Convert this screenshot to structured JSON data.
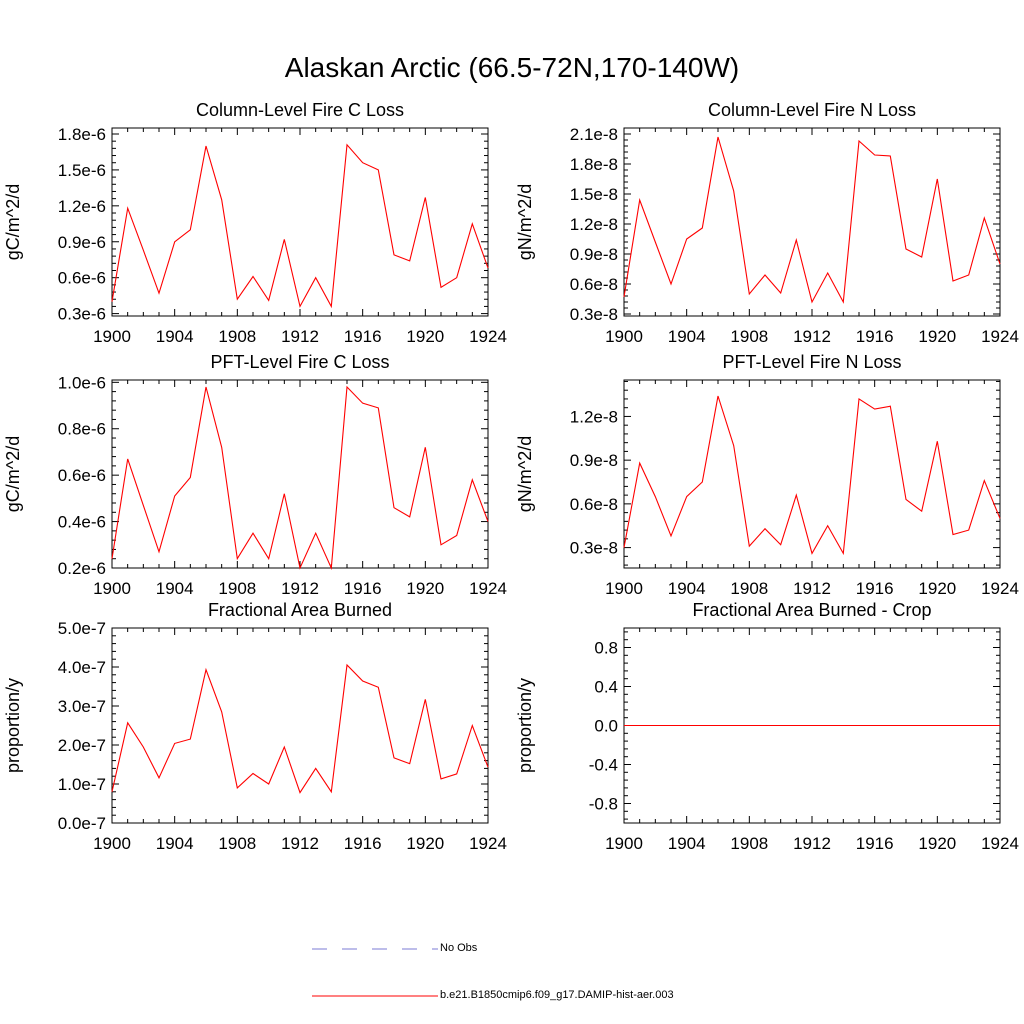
{
  "title": "Alaskan Arctic (66.5-72N,170-140W)",
  "colors": {
    "model": "#ff0000",
    "obs": "#7b7bd6"
  },
  "legend": [
    {
      "label": "No Obs",
      "style": "dashed",
      "color": "#7b7bd6"
    },
    {
      "label": "b.e21.B1850cmip6.f09_g17.DAMIP-hist-aer.003",
      "style": "solid",
      "color": "#ff0000"
    }
  ],
  "chart_data": [
    {
      "type": "line",
      "title": "Column-Level Fire C Loss",
      "ylabel": "gC/m^2/d",
      "xlim": [
        1900,
        1924
      ],
      "ylim": [
        2.8e-07,
        1.85e-06
      ],
      "xticks": [
        1900,
        1904,
        1908,
        1912,
        1916,
        1920,
        1924
      ],
      "yticks": [
        3e-07,
        6e-07,
        9e-07,
        1.2e-06,
        1.5e-06,
        1.8e-06
      ],
      "yticklabels": [
        "0.3e-6",
        "0.6e-6",
        "0.9e-6",
        "1.2e-6",
        "1.5e-6",
        "1.8e-6"
      ],
      "x": [
        1900,
        1901,
        1902,
        1903,
        1904,
        1905,
        1906,
        1907,
        1908,
        1909,
        1910,
        1911,
        1912,
        1913,
        1914,
        1915,
        1916,
        1917,
        1918,
        1919,
        1920,
        1921,
        1922,
        1923,
        1924
      ],
      "series": [
        {
          "name": "b.e21.B1850cmip6.f09_g17.DAMIP-hist-aer.003",
          "values": [
            4e-07,
            1.18e-06,
            8.3e-07,
            4.7e-07,
            9e-07,
            1e-06,
            1.7e-06,
            1.25e-06,
            4.2e-07,
            6.1e-07,
            4.1e-07,
            9.2e-07,
            3.6e-07,
            6e-07,
            3.6e-07,
            1.71e-06,
            1.56e-06,
            1.5e-06,
            7.9e-07,
            7.4e-07,
            1.27e-06,
            5.2e-07,
            6e-07,
            1.05e-06,
            6.8e-07
          ]
        }
      ]
    },
    {
      "type": "line",
      "title": "Column-Level Fire N Loss",
      "ylabel": "gN/m^2/d",
      "xlim": [
        1900,
        1924
      ],
      "ylim": [
        2.8e-09,
        2.16e-08
      ],
      "xticks": [
        1900,
        1904,
        1908,
        1912,
        1916,
        1920,
        1924
      ],
      "yticks": [
        3e-09,
        6e-09,
        9e-09,
        1.2e-08,
        1.5e-08,
        1.8e-08,
        2.1e-08
      ],
      "yticklabels": [
        "0.3e-8",
        "0.6e-8",
        "0.9e-8",
        "1.2e-8",
        "1.5e-8",
        "1.8e-8",
        "2.1e-8"
      ],
      "x": [
        1900,
        1901,
        1902,
        1903,
        1904,
        1905,
        1906,
        1907,
        1908,
        1909,
        1910,
        1911,
        1912,
        1913,
        1914,
        1915,
        1916,
        1917,
        1918,
        1919,
        1920,
        1921,
        1922,
        1923,
        1924
      ],
      "series": [
        {
          "name": "b.e21.B1850cmip6.f09_g17.DAMIP-hist-aer.003",
          "values": [
            4.7e-09,
            1.44e-08,
            1.02e-08,
            6e-09,
            1.05e-08,
            1.16e-08,
            2.07e-08,
            1.53e-08,
            5e-09,
            6.9e-09,
            5.1e-09,
            1.04e-08,
            4.2e-09,
            7.1e-09,
            4.2e-09,
            2.03e-08,
            1.89e-08,
            1.88e-08,
            9.5e-09,
            8.7e-09,
            1.65e-08,
            6.3e-09,
            6.9e-09,
            1.26e-08,
            8e-09
          ]
        }
      ]
    },
    {
      "type": "line",
      "title": "PFT-Level Fire C Loss",
      "ylabel": "gC/m^2/d",
      "xlim": [
        1900,
        1924
      ],
      "ylim": [
        2e-07,
        1.01e-06
      ],
      "xticks": [
        1900,
        1904,
        1908,
        1912,
        1916,
        1920,
        1924
      ],
      "yticks": [
        2e-07,
        4e-07,
        6e-07,
        8e-07,
        1e-06
      ],
      "yticklabels": [
        "0.2e-6",
        "0.4e-6",
        "0.6e-6",
        "0.8e-6",
        "1.0e-6"
      ],
      "x": [
        1900,
        1901,
        1902,
        1903,
        1904,
        1905,
        1906,
        1907,
        1908,
        1909,
        1910,
        1911,
        1912,
        1913,
        1914,
        1915,
        1916,
        1917,
        1918,
        1919,
        1920,
        1921,
        1922,
        1923,
        1924
      ],
      "series": [
        {
          "name": "b.e21.B1850cmip6.f09_g17.DAMIP-hist-aer.003",
          "values": [
            2.4e-07,
            6.7e-07,
            4.7e-07,
            2.7e-07,
            5.1e-07,
            5.9e-07,
            9.8e-07,
            7.2e-07,
            2.4e-07,
            3.5e-07,
            2.4e-07,
            5.2e-07,
            2e-07,
            3.5e-07,
            2e-07,
            9.8e-07,
            9.1e-07,
            8.9e-07,
            4.6e-07,
            4.2e-07,
            7.2e-07,
            3e-07,
            3.4e-07,
            5.8e-07,
            4e-07
          ]
        }
      ]
    },
    {
      "type": "line",
      "title": "PFT-Level Fire N Loss",
      "ylabel": "gN/m^2/d",
      "xlim": [
        1900,
        1924
      ],
      "ylim": [
        1.6e-09,
        1.45e-08
      ],
      "xticks": [
        1900,
        1904,
        1908,
        1912,
        1916,
        1920,
        1924
      ],
      "yticks": [
        3e-09,
        6e-09,
        9e-09,
        1.2e-08
      ],
      "yticklabels": [
        "0.3e-8",
        "0.6e-8",
        "0.9e-8",
        "1.2e-8"
      ],
      "x": [
        1900,
        1901,
        1902,
        1903,
        1904,
        1905,
        1906,
        1907,
        1908,
        1909,
        1910,
        1911,
        1912,
        1913,
        1914,
        1915,
        1916,
        1917,
        1918,
        1919,
        1920,
        1921,
        1922,
        1923,
        1924
      ],
      "series": [
        {
          "name": "b.e21.B1850cmip6.f09_g17.DAMIP-hist-aer.003",
          "values": [
            3e-09,
            8.8e-09,
            6.5e-09,
            3.8e-09,
            6.5e-09,
            7.5e-09,
            1.34e-08,
            1e-08,
            3.1e-09,
            4.3e-09,
            3.2e-09,
            6.6e-09,
            2.6e-09,
            4.5e-09,
            2.6e-09,
            1.32e-08,
            1.25e-08,
            1.27e-08,
            6.3e-09,
            5.5e-09,
            1.03e-08,
            3.9e-09,
            4.2e-09,
            7.6e-09,
            5e-09
          ]
        }
      ]
    },
    {
      "type": "line",
      "title": "Fractional Area Burned",
      "ylabel": "proportion/y",
      "xlim": [
        1900,
        1924
      ],
      "ylim": [
        0.0,
        5e-07
      ],
      "xticks": [
        1900,
        1904,
        1908,
        1912,
        1916,
        1920,
        1924
      ],
      "yticks": [
        0.0,
        1e-07,
        2e-07,
        3e-07,
        4e-07,
        5e-07
      ],
      "yticklabels": [
        "0.0e-7",
        "1.0e-7",
        "2.0e-7",
        "3.0e-7",
        "4.0e-7",
        "5.0e-7"
      ],
      "x": [
        1900,
        1901,
        1902,
        1903,
        1904,
        1905,
        1906,
        1907,
        1908,
        1909,
        1910,
        1911,
        1912,
        1913,
        1914,
        1915,
        1916,
        1917,
        1918,
        1919,
        1920,
        1921,
        1922,
        1923,
        1924
      ],
      "series": [
        {
          "name": "b.e21.B1850cmip6.f09_g17.DAMIP-hist-aer.003",
          "values": [
            8e-08,
            2.57e-07,
            1.95e-07,
            1.16e-07,
            2.04e-07,
            2.15e-07,
            3.93e-07,
            2.85e-07,
            9e-08,
            1.27e-07,
            1e-07,
            1.95e-07,
            7.8e-08,
            1.4e-07,
            8e-08,
            4.05e-07,
            3.64e-07,
            3.48e-07,
            1.67e-07,
            1.52e-07,
            3.17e-07,
            1.13e-07,
            1.26e-07,
            2.5e-07,
            1.43e-07
          ]
        }
      ]
    },
    {
      "type": "line",
      "title": "Fractional Area Burned - Crop",
      "ylabel": "proportion/y",
      "xlim": [
        1900,
        1924
      ],
      "ylim": [
        -1.0,
        1.0
      ],
      "xticks": [
        1900,
        1904,
        1908,
        1912,
        1916,
        1920,
        1924
      ],
      "yticks": [
        -0.8,
        -0.4,
        0.0,
        0.4,
        0.8
      ],
      "yticklabels": [
        "-0.8",
        "-0.4",
        "0.0",
        "0.4",
        "0.8"
      ],
      "x": [
        1900,
        1901,
        1902,
        1903,
        1904,
        1905,
        1906,
        1907,
        1908,
        1909,
        1910,
        1911,
        1912,
        1913,
        1914,
        1915,
        1916,
        1917,
        1918,
        1919,
        1920,
        1921,
        1922,
        1923,
        1924
      ],
      "series": [
        {
          "name": "b.e21.B1850cmip6.f09_g17.DAMIP-hist-aer.003",
          "values": [
            0,
            0,
            0,
            0,
            0,
            0,
            0,
            0,
            0,
            0,
            0,
            0,
            0,
            0,
            0,
            0,
            0,
            0,
            0,
            0,
            0,
            0,
            0,
            0,
            0
          ]
        }
      ]
    }
  ]
}
